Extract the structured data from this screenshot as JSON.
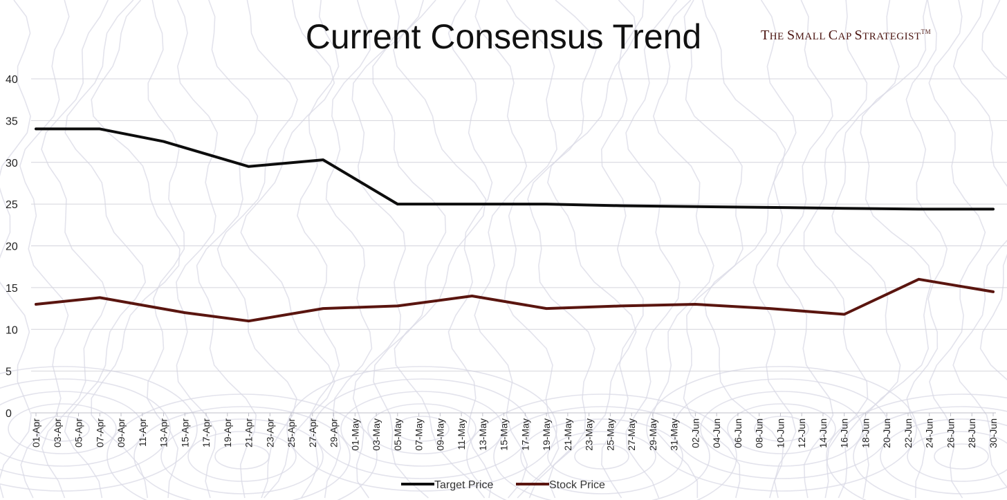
{
  "brand": {
    "text": "The Small Cap Strategist",
    "tm": "TM"
  },
  "colors": {
    "target": "#0d0d0d",
    "stock": "#5a150f",
    "grid": "#d4d4dc",
    "contour": "#dadae6"
  },
  "chart_data": {
    "type": "line",
    "title": "Current Consensus Trend",
    "xlabel": "",
    "ylabel": "",
    "ylim": [
      0,
      40
    ],
    "yticks": [
      0,
      5,
      10,
      15,
      20,
      25,
      30,
      35,
      40
    ],
    "grid": true,
    "legend_position": "bottom",
    "categories": [
      "01-Apr",
      "03-Apr",
      "05-Apr",
      "07-Apr",
      "09-Apr",
      "11-Apr",
      "13-Apr",
      "15-Apr",
      "17-Apr",
      "19-Apr",
      "21-Apr",
      "23-Apr",
      "25-Apr",
      "27-Apr",
      "29-Apr",
      "01-May",
      "03-May",
      "05-May",
      "07-May",
      "09-May",
      "11-May",
      "13-May",
      "15-May",
      "17-May",
      "19-May",
      "21-May",
      "23-May",
      "25-May",
      "27-May",
      "29-May",
      "31-May",
      "02-Jun",
      "04-Jun",
      "06-Jun",
      "08-Jun",
      "10-Jun",
      "12-Jun",
      "14-Jun",
      "16-Jun",
      "18-Jun",
      "20-Jun",
      "22-Jun",
      "24-Jun",
      "26-Jun",
      "28-Jun",
      "30-Jun"
    ],
    "series": [
      {
        "name": "Target Price",
        "points": [
          {
            "x": "01-Apr",
            "y": 34
          },
          {
            "x": "07-Apr",
            "y": 34
          },
          {
            "x": "13-Apr",
            "y": 32.5
          },
          {
            "x": "21-Apr",
            "y": 29.5
          },
          {
            "x": "28-Apr",
            "y": 30.3
          },
          {
            "x": "05-May",
            "y": 25
          },
          {
            "x": "19-May",
            "y": 25
          },
          {
            "x": "26-May",
            "y": 24.8
          },
          {
            "x": "02-Jun",
            "y": 24.7
          },
          {
            "x": "16-Jun",
            "y": 24.5
          },
          {
            "x": "23-Jun",
            "y": 24.4
          },
          {
            "x": "30-Jun",
            "y": 24.4
          }
        ]
      },
      {
        "name": "Stock Price",
        "points": [
          {
            "x": "01-Apr",
            "y": 13
          },
          {
            "x": "07-Apr",
            "y": 13.8
          },
          {
            "x": "15-Apr",
            "y": 12
          },
          {
            "x": "21-Apr",
            "y": 11
          },
          {
            "x": "28-Apr",
            "y": 12.5
          },
          {
            "x": "05-May",
            "y": 12.8
          },
          {
            "x": "12-May",
            "y": 14
          },
          {
            "x": "19-May",
            "y": 12.5
          },
          {
            "x": "26-May",
            "y": 12.8
          },
          {
            "x": "02-Jun",
            "y": 13
          },
          {
            "x": "09-Jun",
            "y": 12.5
          },
          {
            "x": "16-Jun",
            "y": 11.8
          },
          {
            "x": "23-Jun",
            "y": 16
          },
          {
            "x": "30-Jun",
            "y": 14.5
          }
        ]
      }
    ]
  }
}
